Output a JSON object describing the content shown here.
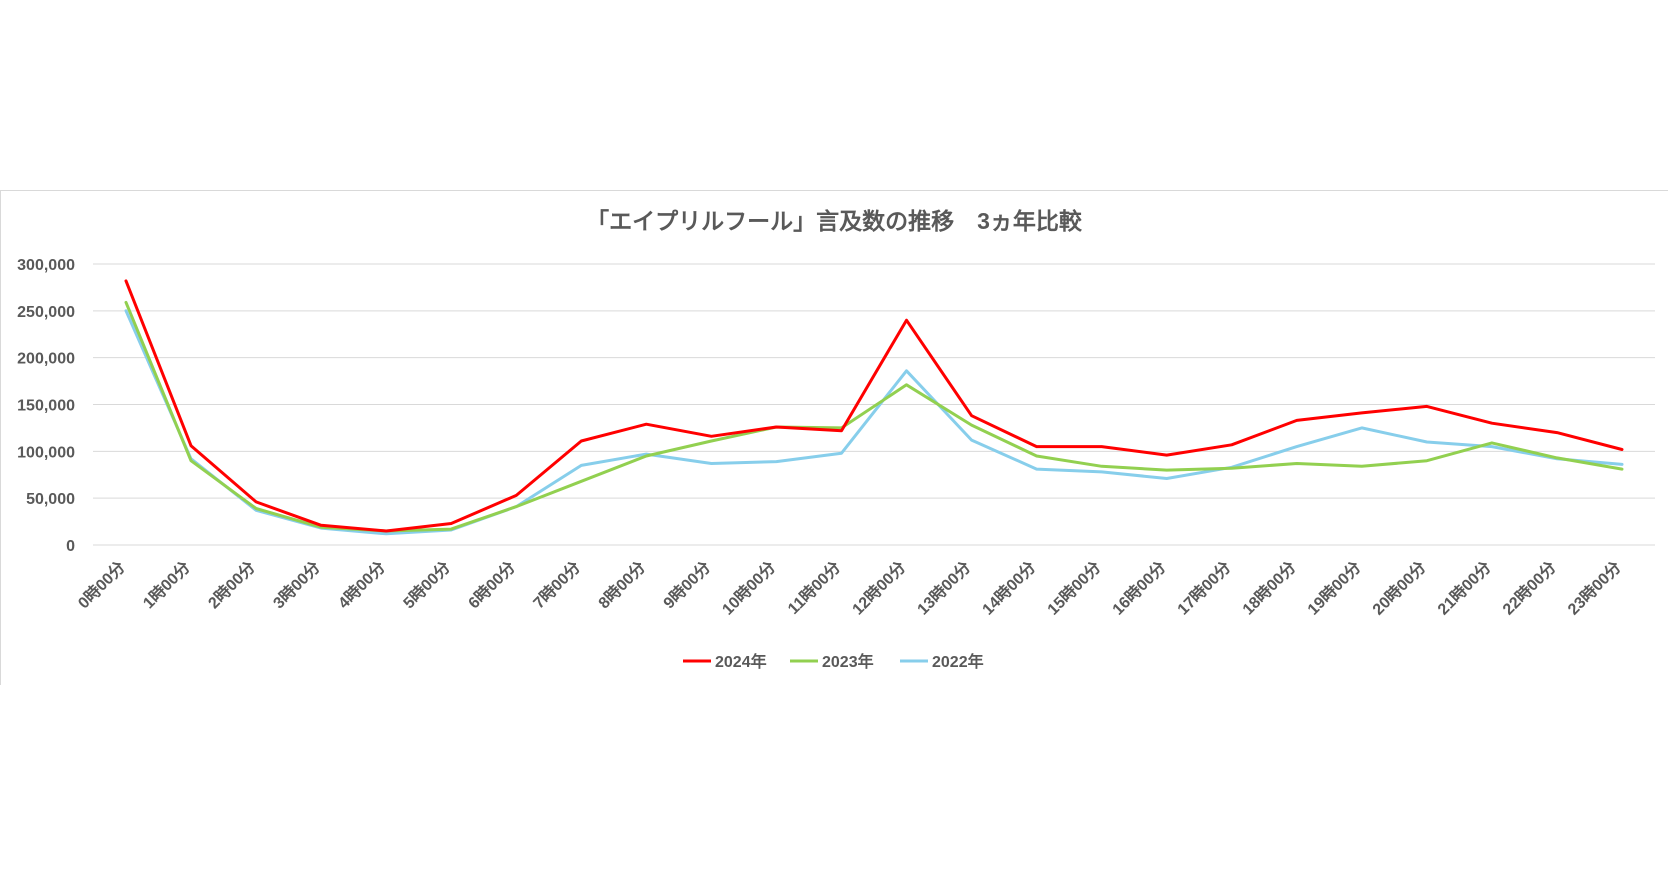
{
  "chart_data": {
    "type": "line",
    "title": "「エイプリルフール」言及数の推移　3ヵ年比較",
    "xlabel": "",
    "ylabel": "",
    "ylim": [
      0,
      300000
    ],
    "yticks": [
      "0",
      "50,000",
      "100,000",
      "150,000",
      "200,000",
      "250,000",
      "300,000"
    ],
    "ytick_values": [
      0,
      50000,
      100000,
      150000,
      200000,
      250000,
      300000
    ],
    "grid": true,
    "legend_position": "bottom",
    "categories": [
      "0時00分",
      "1時00分",
      "2時00分",
      "3時00分",
      "4時00分",
      "5時00分",
      "6時00分",
      "7時00分",
      "8時00分",
      "9時00分",
      "10時00分",
      "11時00分",
      "12時00分",
      "13時00分",
      "14時00分",
      "15時00分",
      "16時00分",
      "17時00分",
      "18時00分",
      "19時00分",
      "20時00分",
      "21時00分",
      "22時00分",
      "23時00分"
    ],
    "series": [
      {
        "name": "2024年",
        "color": "#ff0000",
        "values": [
          282000,
          106000,
          46000,
          21000,
          15000,
          23000,
          53000,
          111000,
          129000,
          116000,
          126000,
          122000,
          240000,
          138000,
          105000,
          105000,
          96000,
          107000,
          133000,
          141000,
          148000,
          130000,
          120000,
          102000
        ]
      },
      {
        "name": "2023年",
        "color": "#92d050",
        "values": [
          259000,
          90000,
          39000,
          19000,
          15000,
          17000,
          41000,
          68000,
          95000,
          111000,
          126000,
          125000,
          171000,
          128000,
          95000,
          84000,
          80000,
          82000,
          87000,
          84000,
          90000,
          109000,
          93000,
          81000
        ]
      },
      {
        "name": "2022年",
        "color": "#87ceeb",
        "values": [
          250000,
          92000,
          37000,
          18000,
          12000,
          16000,
          41000,
          85000,
          97000,
          87000,
          89000,
          98000,
          186000,
          112000,
          81000,
          78000,
          71000,
          83000,
          105000,
          125000,
          110000,
          105000,
          92000,
          86000
        ]
      }
    ]
  }
}
